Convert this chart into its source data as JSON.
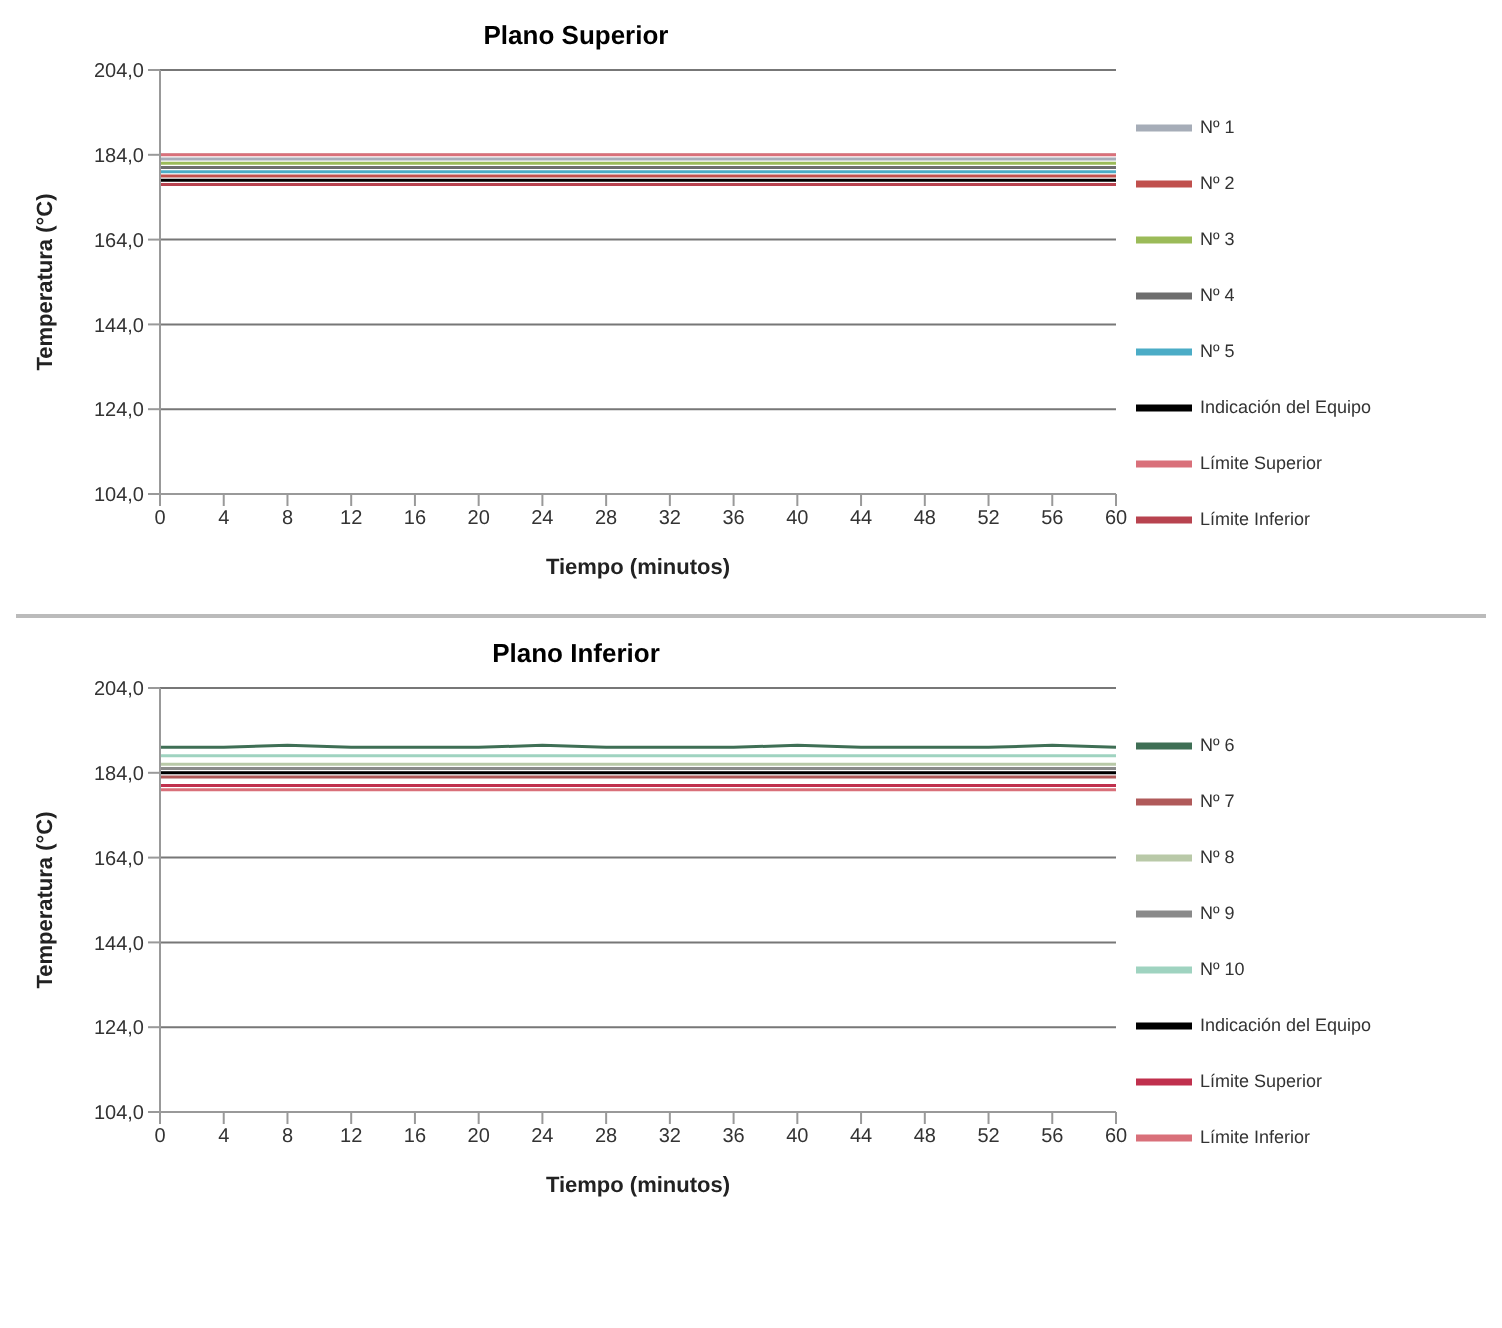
{
  "chart_data": [
    {
      "type": "line",
      "title": "Plano Superior",
      "xlabel": "Tiempo (minutos)",
      "ylabel": "Temperatura (°C)",
      "x": [
        0,
        4,
        8,
        12,
        16,
        20,
        24,
        28,
        32,
        36,
        40,
        44,
        48,
        52,
        56,
        60
      ],
      "xlim": [
        0,
        60
      ],
      "xticks": [
        0,
        4,
        8,
        12,
        16,
        20,
        24,
        28,
        32,
        36,
        40,
        44,
        48,
        52,
        56,
        60
      ],
      "ylim": [
        104,
        204
      ],
      "yticks": [
        {
          "value": 104,
          "label": "104,0"
        },
        {
          "value": 124,
          "label": "124,0"
        },
        {
          "value": 144,
          "label": "144,0"
        },
        {
          "value": 164,
          "label": "164,0"
        },
        {
          "value": 184,
          "label": "184,0"
        },
        {
          "value": 204,
          "label": "204,0"
        }
      ],
      "grid": "y",
      "legend": "right",
      "marker": "none",
      "line_style": "solid",
      "series": [
        {
          "name": "Nº 1",
          "color": "#a6adb8",
          "values": [
            183,
            183,
            183,
            183,
            183,
            183,
            183,
            183,
            183,
            183,
            183,
            183,
            183,
            183,
            183,
            183
          ]
        },
        {
          "name": "Nº 2",
          "color": "#c0504d",
          "values": [
            179,
            179,
            179,
            179,
            179,
            179,
            179,
            179,
            179,
            179,
            179,
            179,
            179,
            179,
            179,
            179
          ]
        },
        {
          "name": "Nº 3",
          "color": "#9bbb59",
          "values": [
            182,
            182,
            182,
            182,
            182,
            182,
            182,
            182,
            182,
            182,
            182,
            182,
            182,
            182,
            182,
            182
          ]
        },
        {
          "name": "Nº 4",
          "color": "#6e6e6e",
          "values": [
            181,
            181,
            181,
            181,
            181,
            181,
            181,
            181,
            181,
            181,
            181,
            181,
            181,
            181,
            181,
            181
          ]
        },
        {
          "name": "Nº 5",
          "color": "#4bacc6",
          "values": [
            180,
            180,
            180,
            180,
            180,
            180,
            180,
            180,
            180,
            180,
            180,
            180,
            180,
            180,
            180,
            180
          ]
        },
        {
          "name": "Indicación del Equipo",
          "color": "#000000",
          "values": [
            178,
            178,
            178,
            178,
            178,
            178,
            178,
            178,
            178,
            178,
            178,
            178,
            178,
            178,
            178,
            178
          ]
        },
        {
          "name": "Límite Superior",
          "color": "#d9707a",
          "values": [
            184,
            184,
            184,
            184,
            184,
            184,
            184,
            184,
            184,
            184,
            184,
            184,
            184,
            184,
            184,
            184
          ]
        },
        {
          "name": "Límite Inferior",
          "color": "#b8434f",
          "values": [
            177,
            177,
            177,
            177,
            177,
            177,
            177,
            177,
            177,
            177,
            177,
            177,
            177,
            177,
            177,
            177
          ]
        }
      ]
    },
    {
      "type": "line",
      "title": "Plano Inferior",
      "xlabel": "Tiempo (minutos)",
      "ylabel": "Temperatura (°C)",
      "x": [
        0,
        4,
        8,
        12,
        16,
        20,
        24,
        28,
        32,
        36,
        40,
        44,
        48,
        52,
        56,
        60
      ],
      "xlim": [
        0,
        60
      ],
      "xticks": [
        0,
        4,
        8,
        12,
        16,
        20,
        24,
        28,
        32,
        36,
        40,
        44,
        48,
        52,
        56,
        60
      ],
      "ylim": [
        104,
        204
      ],
      "yticks": [
        {
          "value": 104,
          "label": "104,0"
        },
        {
          "value": 124,
          "label": "124,0"
        },
        {
          "value": 144,
          "label": "144,0"
        },
        {
          "value": 164,
          "label": "164,0"
        },
        {
          "value": 184,
          "label": "184,0"
        },
        {
          "value": 204,
          "label": "204,0"
        }
      ],
      "grid": "y",
      "legend": "right",
      "marker": "none",
      "line_style": "solid",
      "series": [
        {
          "name": "Nº 6",
          "color": "#3f6f55",
          "values": [
            190,
            190,
            190.5,
            190,
            190,
            190,
            190.5,
            190,
            190,
            190,
            190.5,
            190,
            190,
            190,
            190.5,
            190
          ]
        },
        {
          "name": "Nº 7",
          "color": "#b05a5a",
          "values": [
            183,
            183,
            183,
            183,
            183,
            183,
            183,
            183,
            183,
            183,
            183,
            183,
            183,
            183,
            183,
            183
          ]
        },
        {
          "name": "Nº 8",
          "color": "#b9c9a8",
          "values": [
            186,
            186,
            186,
            186,
            186,
            186,
            186,
            186,
            186,
            186,
            186,
            186,
            186,
            186,
            186,
            186
          ]
        },
        {
          "name": "Nº 9",
          "color": "#8a8a8a",
          "values": [
            185,
            185,
            185,
            185,
            185,
            185,
            185,
            185,
            185,
            185,
            185,
            185,
            185,
            185,
            185,
            185
          ]
        },
        {
          "name": "Nº 10",
          "color": "#9fd3c0",
          "values": [
            188,
            188,
            188,
            188,
            188,
            188,
            188,
            188,
            188,
            188,
            188,
            188,
            188,
            188,
            188,
            188
          ]
        },
        {
          "name": "Indicación del Equipo",
          "color": "#000000",
          "values": [
            184,
            184,
            184,
            184,
            184,
            184,
            184,
            184,
            184,
            184,
            184,
            184,
            184,
            184,
            184,
            184
          ]
        },
        {
          "name": "Límite Superior",
          "color": "#c0304d",
          "values": [
            181,
            181,
            181,
            181,
            181,
            181,
            181,
            181,
            181,
            181,
            181,
            181,
            181,
            181,
            181,
            181
          ]
        },
        {
          "name": "Límite Inferior",
          "color": "#d9707a",
          "values": [
            180,
            180,
            180,
            180,
            180,
            180,
            180,
            180,
            180,
            180,
            180,
            180,
            180,
            180,
            180,
            180
          ]
        }
      ]
    }
  ]
}
